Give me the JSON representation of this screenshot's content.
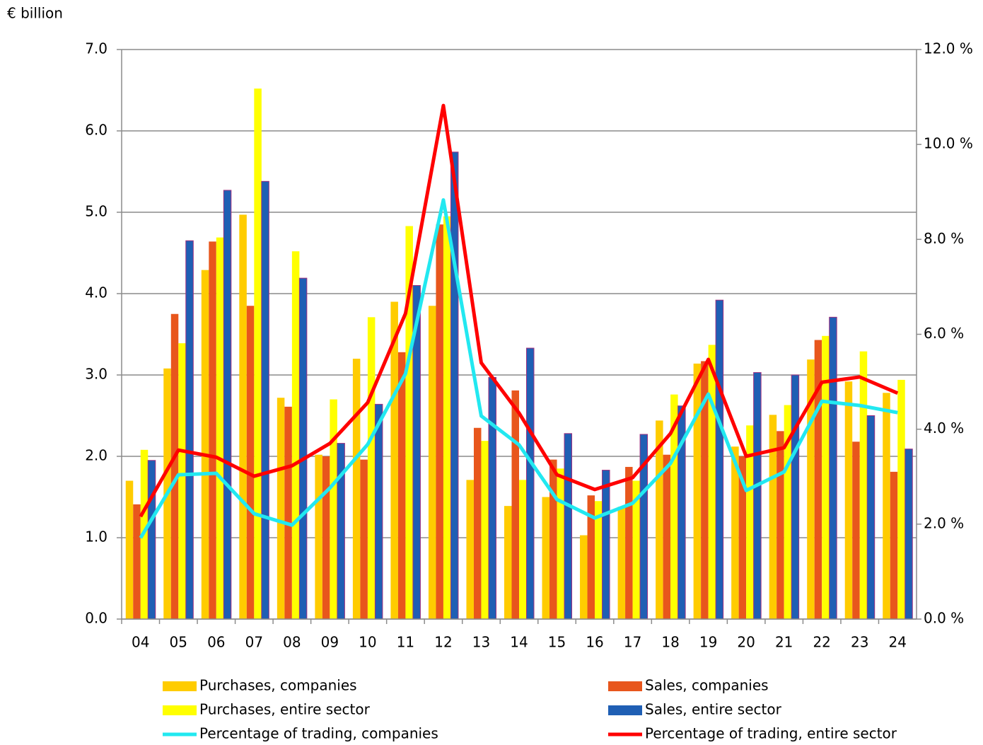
{
  "chart_data": {
    "type": "bar",
    "y_label": "€ billion",
    "categories": [
      "04",
      "05",
      "06",
      "07",
      "08",
      "09",
      "10",
      "11",
      "12",
      "13",
      "14",
      "15",
      "16",
      "17",
      "18",
      "19",
      "20",
      "21",
      "22",
      "23",
      "24"
    ],
    "series": [
      {
        "name": "Purchases, companies",
        "type": "bar",
        "color": "#FFCC00",
        "values": [
          1.7,
          3.08,
          4.29,
          4.97,
          2.72,
          2.02,
          3.2,
          3.9,
          3.85,
          1.71,
          1.39,
          1.5,
          1.03,
          1.38,
          2.44,
          3.14,
          2.12,
          2.51,
          3.19,
          2.92,
          2.78
        ]
      },
      {
        "name": "Sales, companies",
        "type": "bar",
        "color": "#E8561C",
        "values": [
          1.41,
          3.75,
          4.64,
          3.85,
          2.61,
          2.0,
          1.96,
          3.28,
          4.85,
          2.35,
          2.81,
          1.96,
          1.52,
          1.87,
          2.02,
          3.17,
          2.0,
          2.31,
          3.43,
          2.18,
          1.81
        ]
      },
      {
        "name": "Purchases, entire sector",
        "type": "bar",
        "color": "#FFFF00",
        "values": [
          2.08,
          3.39,
          4.69,
          6.52,
          4.52,
          2.7,
          3.71,
          4.83,
          4.95,
          2.19,
          1.71,
          1.85,
          1.45,
          1.7,
          2.76,
          3.37,
          2.38,
          2.63,
          3.48,
          3.29,
          2.94
        ]
      },
      {
        "name": "Sales, entire sector",
        "type": "bar",
        "color": "#1F5FB4",
        "values": [
          1.95,
          4.65,
          5.27,
          5.38,
          4.19,
          2.16,
          2.64,
          4.1,
          5.74,
          2.97,
          3.33,
          2.28,
          1.83,
          2.27,
          2.62,
          3.92,
          3.03,
          3.0,
          3.71,
          2.5,
          2.09
        ]
      },
      {
        "name": "Percentage of trading, companies",
        "type": "line",
        "axis": "y2",
        "color": "#22E8F0",
        "values": [
          1.71,
          3.04,
          3.07,
          2.22,
          1.98,
          2.76,
          3.68,
          5.17,
          8.83,
          4.28,
          3.67,
          2.52,
          2.13,
          2.44,
          3.28,
          4.74,
          2.71,
          3.1,
          4.59,
          4.5,
          4.35
        ]
      },
      {
        "name": "Percentage of trading, entire sector",
        "type": "line",
        "axis": "y2",
        "color": "#FF0000",
        "values": [
          2.16,
          3.56,
          3.41,
          3.01,
          3.23,
          3.7,
          4.56,
          6.44,
          10.82,
          5.4,
          4.34,
          3.04,
          2.73,
          2.98,
          3.91,
          5.47,
          3.43,
          3.61,
          4.99,
          5.1,
          4.76
        ]
      }
    ],
    "ylim": [
      0,
      7
    ],
    "yticks": [
      {
        "value": 0,
        "label": "0.0"
      },
      {
        "value": 1,
        "label": "1.0"
      },
      {
        "value": 2,
        "label": "2.0"
      },
      {
        "value": 3,
        "label": "3.0"
      },
      {
        "value": 4,
        "label": "4.0"
      },
      {
        "value": 5,
        "label": "5.0"
      },
      {
        "value": 6,
        "label": "6.0"
      },
      {
        "value": 7,
        "label": "7.0"
      }
    ],
    "y2lim": [
      0,
      12
    ],
    "y2ticks": [
      {
        "value": 0,
        "label": "0.0 %"
      },
      {
        "value": 2,
        "label": "2.0 %"
      },
      {
        "value": 4,
        "label": "4.0 %"
      },
      {
        "value": 6,
        "label": "6.0 %"
      },
      {
        "value": 8,
        "label": "8.0 %"
      },
      {
        "value": 10,
        "label": "10.0 %"
      },
      {
        "value": 12,
        "label": "12.0 %"
      }
    ],
    "grid": true
  }
}
